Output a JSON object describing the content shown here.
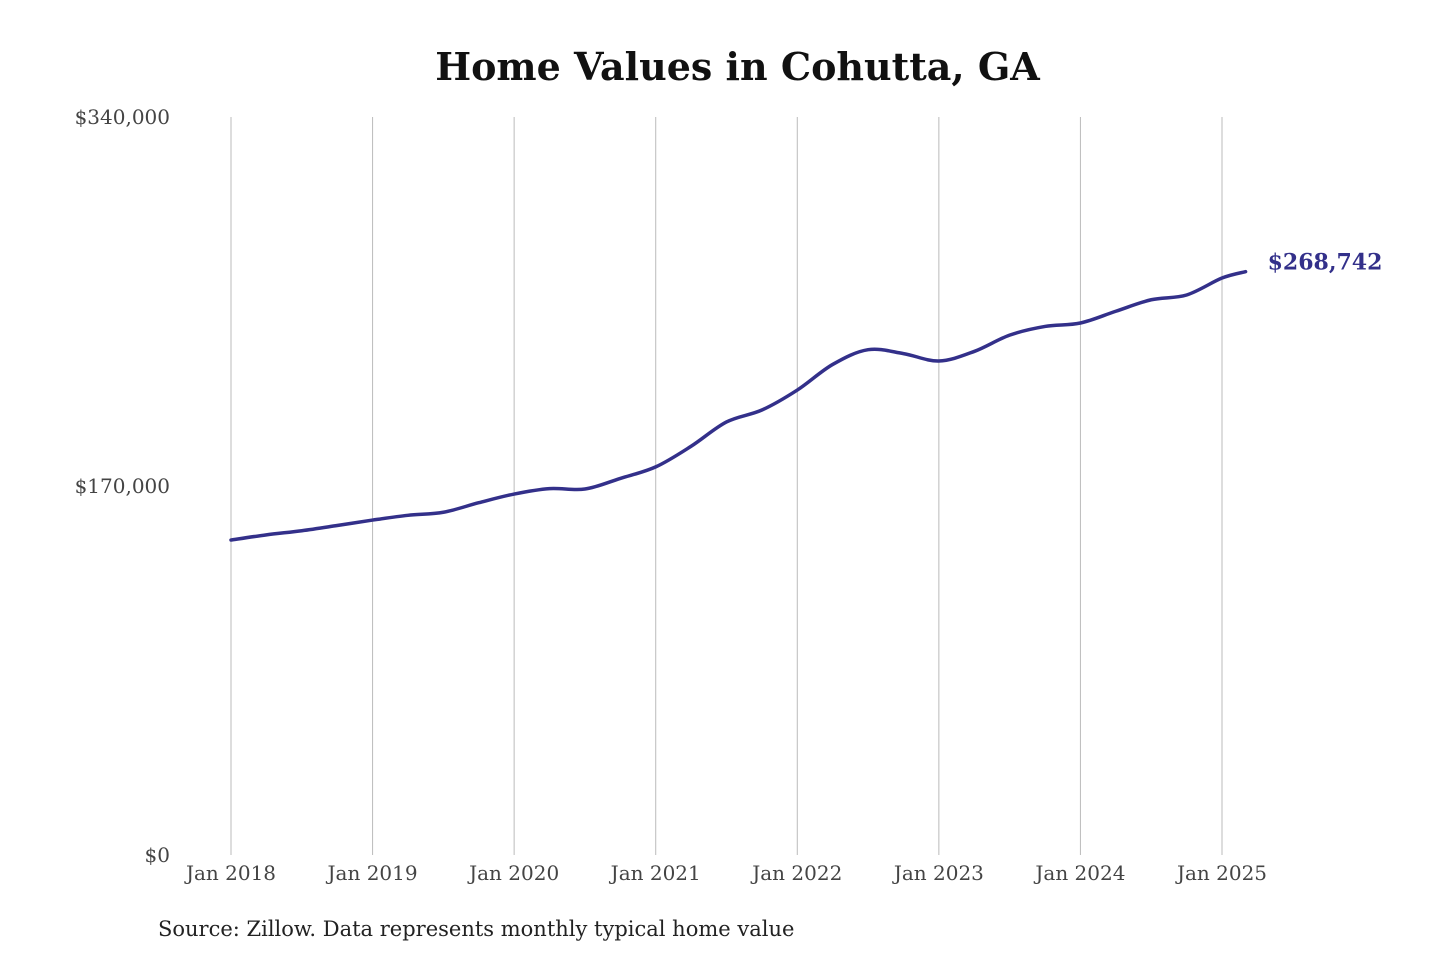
{
  "chart_data": {
    "type": "line",
    "title": "Home Values in Cohutta, GA",
    "source": "Source: Zillow. Data represents monthly typical home value",
    "xlabel": "",
    "ylabel": "",
    "ylim": [
      0,
      340000
    ],
    "yticks": [
      0,
      170000,
      340000
    ],
    "ytick_labels": [
      "$0",
      "$170,000",
      "$340,000"
    ],
    "xticks": [
      "2018-01",
      "2019-01",
      "2020-01",
      "2021-01",
      "2022-01",
      "2023-01",
      "2024-01",
      "2025-01"
    ],
    "xtick_labels": [
      "Jan 2018",
      "Jan 2019",
      "Jan 2020",
      "Jan 2021",
      "Jan 2022",
      "Jan 2023",
      "Jan 2024",
      "Jan 2025"
    ],
    "grid": "vertical",
    "line_color": "#33308a",
    "end_label": "$268,742",
    "series": [
      {
        "x": [
          "2018-01",
          "2018-04",
          "2018-07",
          "2018-10",
          "2019-01",
          "2019-04",
          "2019-07",
          "2019-10",
          "2020-01",
          "2020-04",
          "2020-07",
          "2020-10",
          "2021-01",
          "2021-04",
          "2021-07",
          "2021-10",
          "2022-01",
          "2022-04",
          "2022-07",
          "2022-10",
          "2023-01",
          "2023-04",
          "2023-07",
          "2023-10",
          "2024-01",
          "2024-04",
          "2024-07",
          "2024-10",
          "2025-01",
          "2025-03"
        ],
        "values": [
          145100,
          147500,
          149400,
          151800,
          154300,
          156500,
          157900,
          162300,
          166300,
          168800,
          168600,
          173500,
          178800,
          188300,
          199500,
          205000,
          214200,
          226000,
          232800,
          231000,
          227600,
          232000,
          239500,
          243500,
          245100,
          250500,
          255800,
          258000,
          265800,
          268742
        ]
      }
    ]
  }
}
